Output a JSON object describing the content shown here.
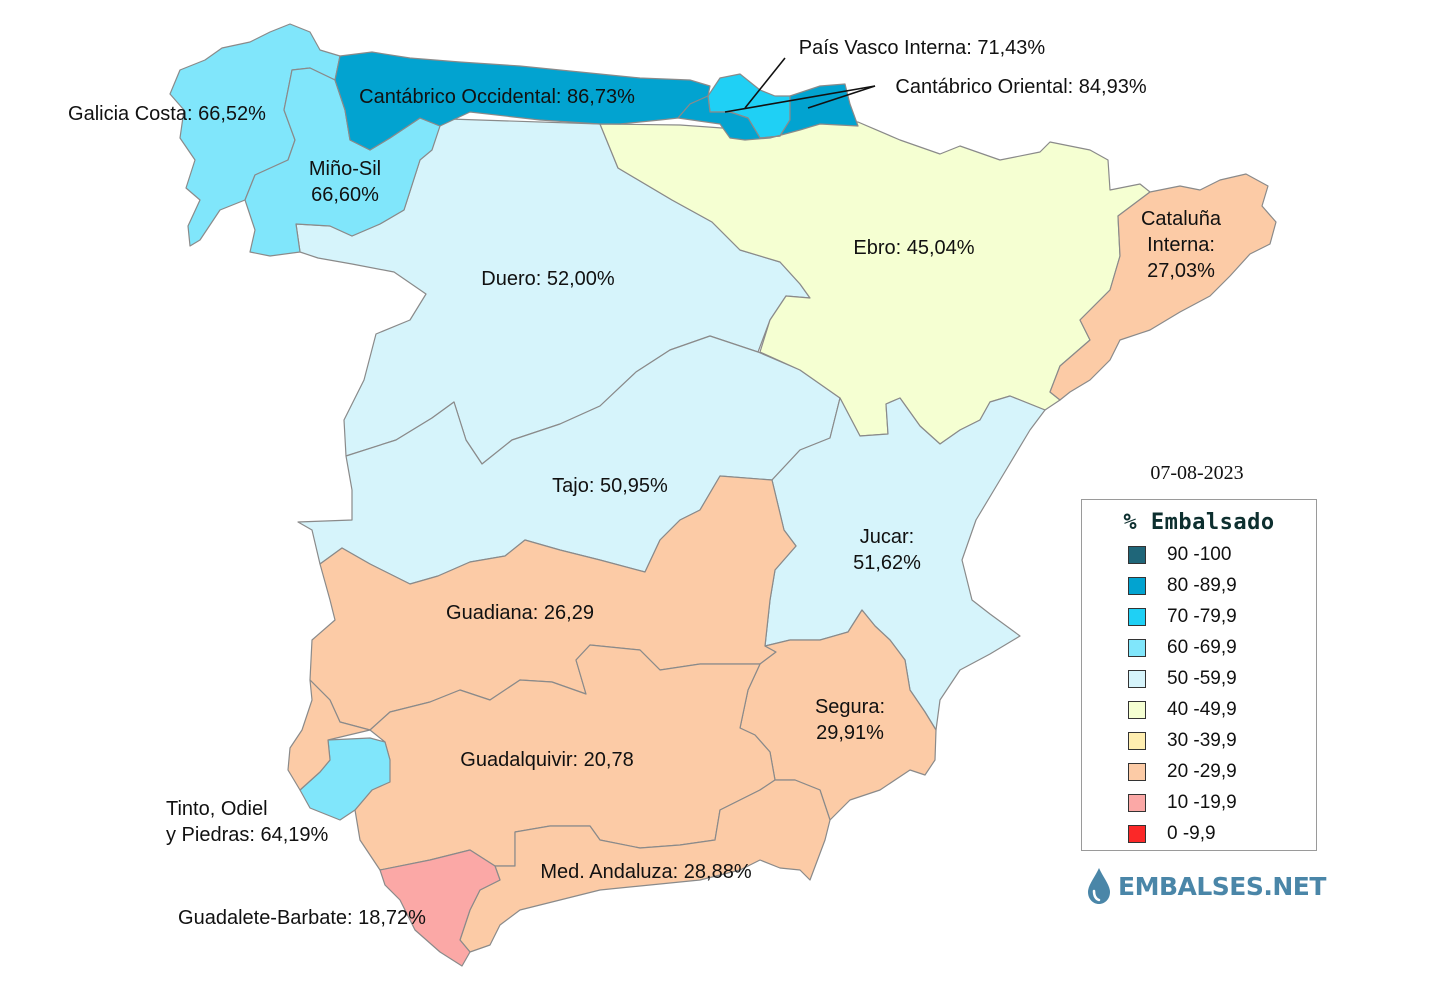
{
  "date": "07-08-2023",
  "legend": {
    "title": "% Embalsado",
    "items": [
      {
        "label": "90 -100",
        "color": "#1f6679"
      },
      {
        "label": "80 -89,9",
        "color": "#02a3d0"
      },
      {
        "label": "70 -79,9",
        "color": "#1fd0f5"
      },
      {
        "label": "60 -69,9",
        "color": "#80e6fb"
      },
      {
        "label": "50 -59,9",
        "color": "#d6f4fb"
      },
      {
        "label": "40 -49,9",
        "color": "#f5ffd2"
      },
      {
        "label": "30 -39,9",
        "color": "#ffeeb0"
      },
      {
        "label": "20 -29,9",
        "color": "#fccba6"
      },
      {
        "label": "10 -19,9",
        "color": "#fba8a6"
      },
      {
        "label": "0 -9,9",
        "color": "#fb2828"
      }
    ]
  },
  "basins": [
    {
      "id": "galicia-costa",
      "lines": [
        "Galicia Costa: 66,52%"
      ],
      "percent": 66.52,
      "color": "#80e6fb"
    },
    {
      "id": "mino-sil",
      "lines": [
        "Miño-Sil",
        "66,60%"
      ],
      "percent": 66.6,
      "color": "#80e6fb"
    },
    {
      "id": "cantabrico-occidental",
      "lines": [
        "Cantábrico Occidental: 86,73%"
      ],
      "percent": 86.73,
      "color": "#02a3d0"
    },
    {
      "id": "pais-vasco-interna",
      "lines": [
        "País Vasco Interna: 71,43%"
      ],
      "percent": 71.43,
      "color": "#1fd0f5"
    },
    {
      "id": "cantabrico-oriental",
      "lines": [
        "Cantábrico Oriental: 84,93%"
      ],
      "percent": 84.93,
      "color": "#02a3d0"
    },
    {
      "id": "ebro",
      "lines": [
        "Ebro: 45,04%"
      ],
      "percent": 45.04,
      "color": "#f5ffd2"
    },
    {
      "id": "cataluna-interna",
      "lines": [
        "Cataluña",
        "Interna:",
        "27,03%"
      ],
      "percent": 27.03,
      "color": "#fccba6"
    },
    {
      "id": "duero",
      "lines": [
        "Duero: 52,00%"
      ],
      "percent": 52.0,
      "color": "#d6f4fb"
    },
    {
      "id": "tajo",
      "lines": [
        "Tajo: 50,95%"
      ],
      "percent": 50.95,
      "color": "#d6f4fb"
    },
    {
      "id": "jucar",
      "lines": [
        "Jucar:",
        "51,62%"
      ],
      "percent": 51.62,
      "color": "#d6f4fb"
    },
    {
      "id": "guadiana",
      "lines": [
        "Guadiana: 26,29"
      ],
      "percent": 26.29,
      "color": "#fccba6"
    },
    {
      "id": "segura",
      "lines": [
        "Segura:",
        "29,91%"
      ],
      "percent": 29.91,
      "color": "#fccba6"
    },
    {
      "id": "guadalquivir",
      "lines": [
        "Guadalquivir: 20,78"
      ],
      "percent": 20.78,
      "color": "#fccba6"
    },
    {
      "id": "tinto-odiel-piedras",
      "lines": [
        "Tinto, Odiel",
        "y Piedras: 64,19%"
      ],
      "percent": 64.19,
      "color": "#80e6fb"
    },
    {
      "id": "med-andaluza",
      "lines": [
        "Med. Andaluza: 28,88%"
      ],
      "percent": 28.88,
      "color": "#fccba6"
    },
    {
      "id": "guadalete-barbate",
      "lines": [
        "Guadalete-Barbate: 18,72%"
      ],
      "percent": 18.72,
      "color": "#fba8a6"
    }
  ],
  "brand": {
    "name": "EMBALSES.NET",
    "color": "#4a86a8"
  }
}
